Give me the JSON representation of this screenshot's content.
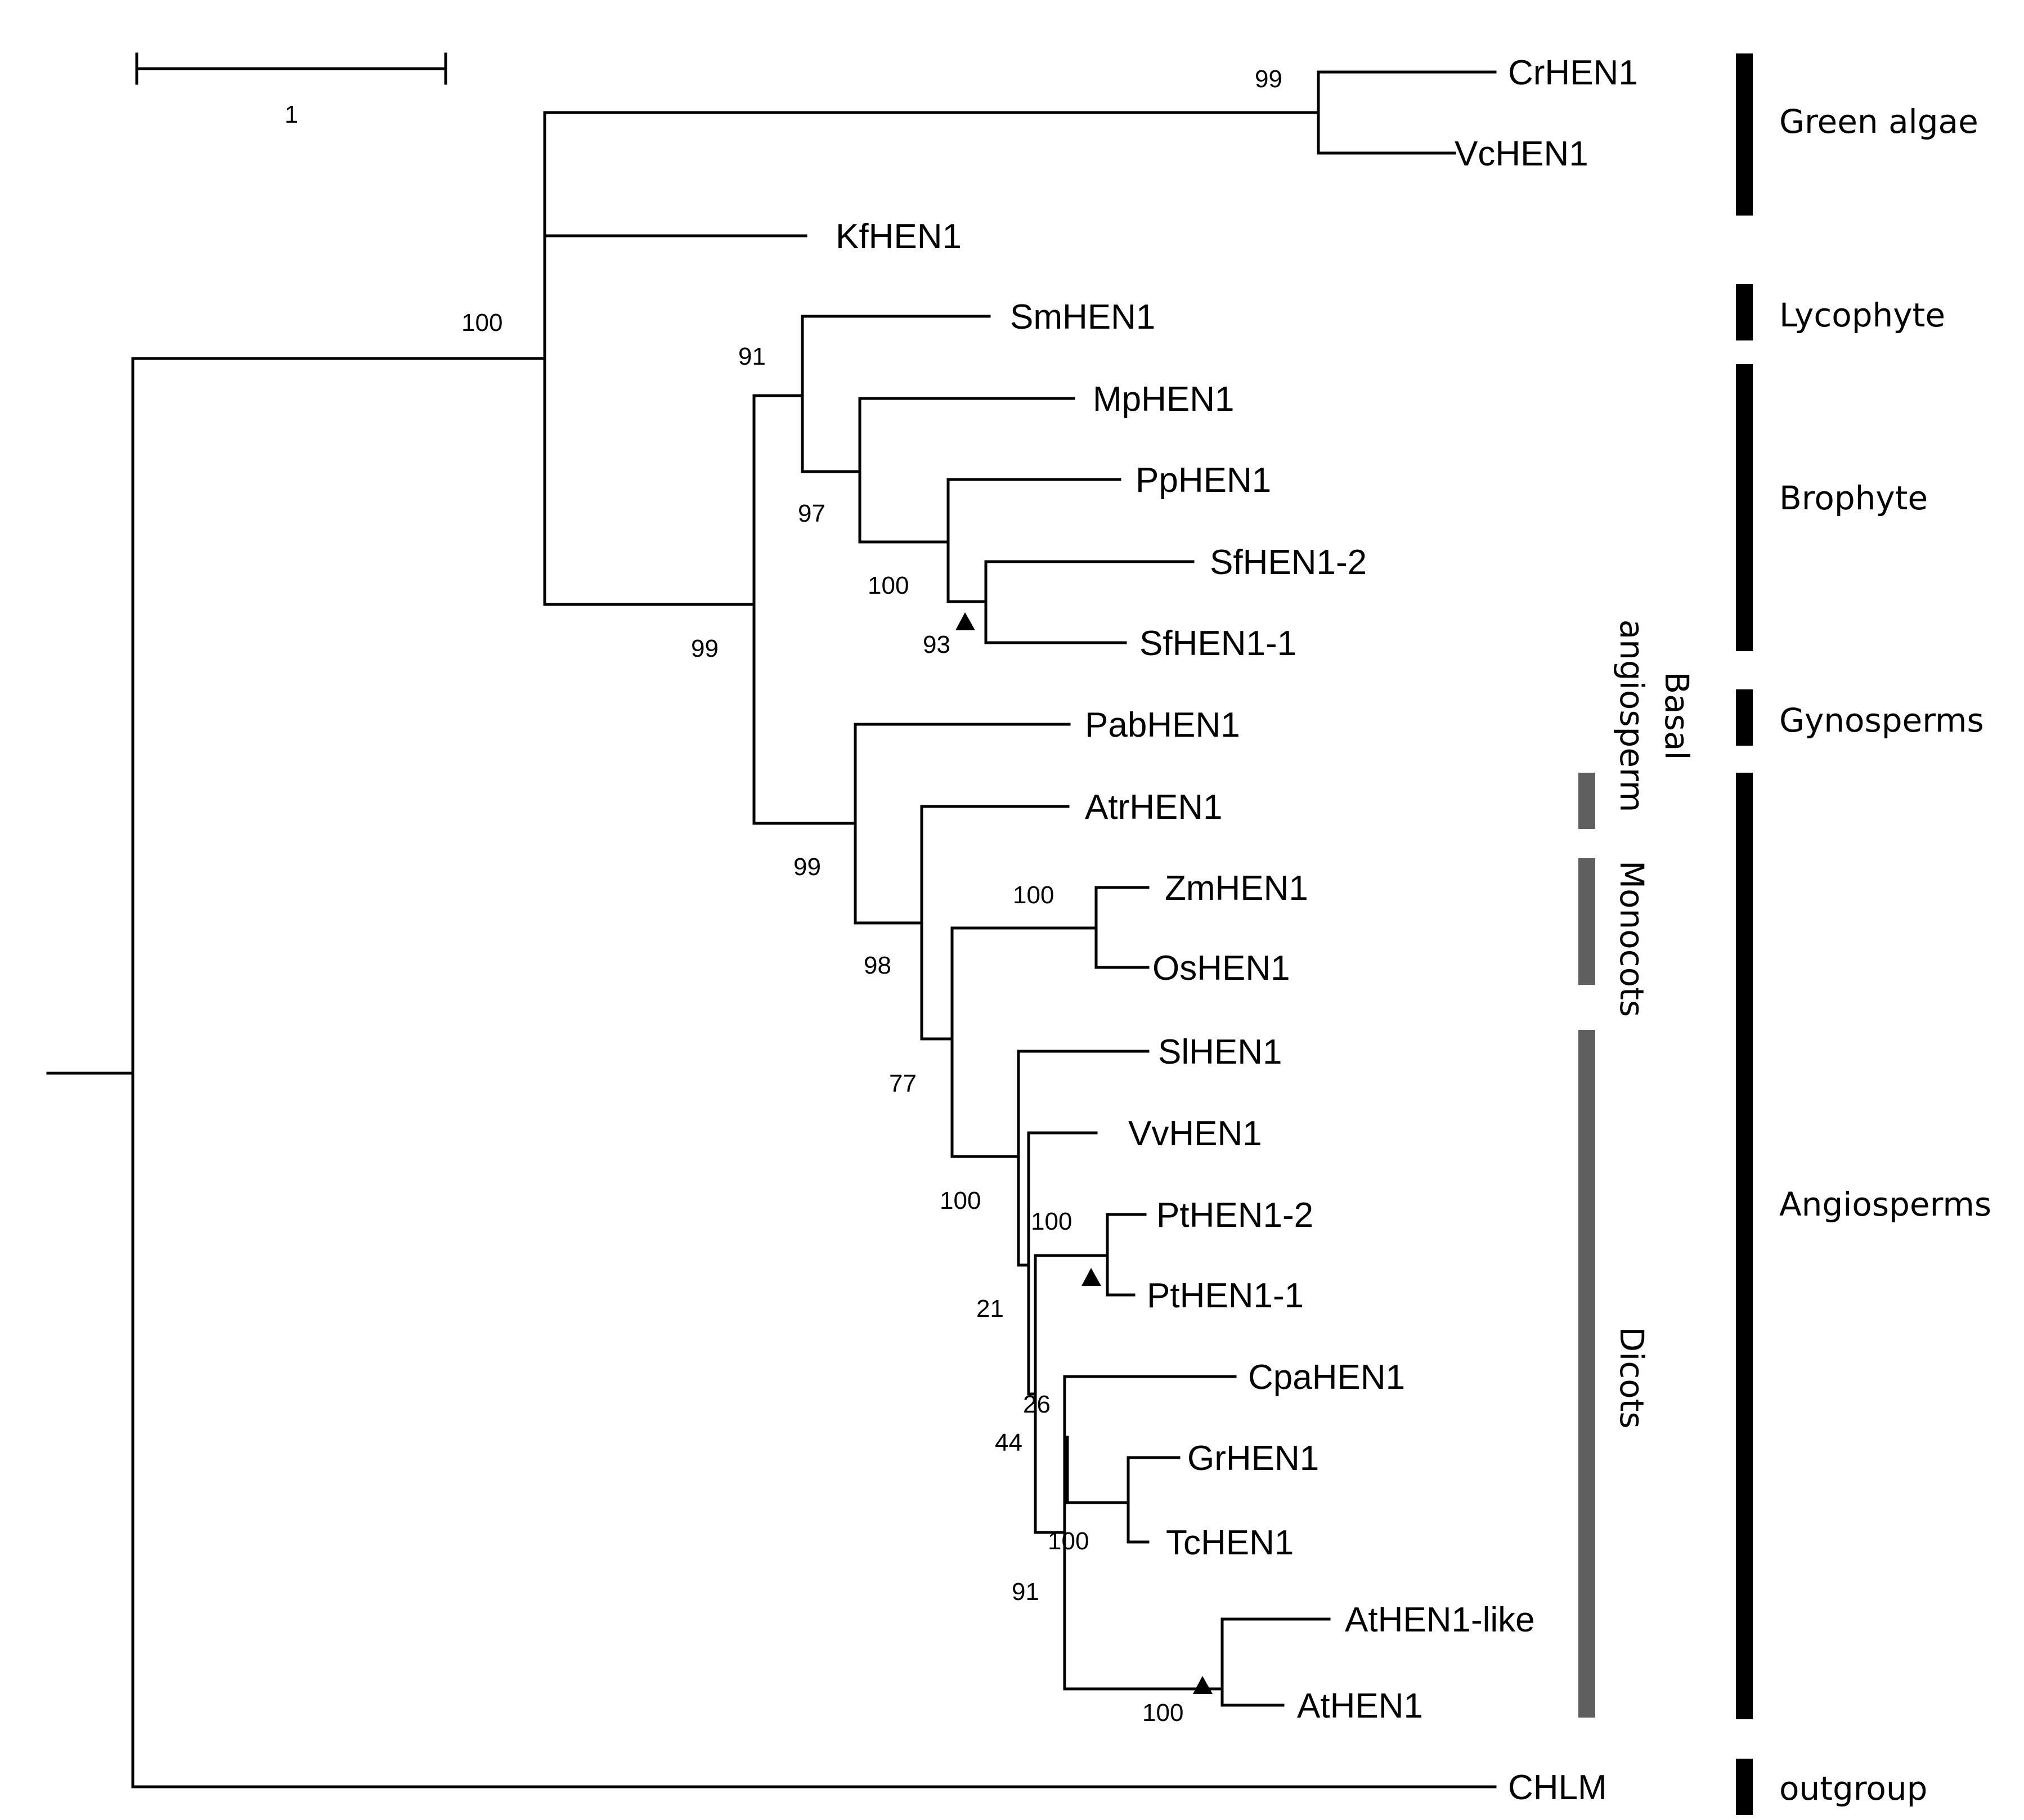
{
  "scale_bar": {
    "label": "1"
  },
  "taxa": [
    "CrHEN1",
    "VcHEN1",
    "KfHEN1",
    "SmHEN1",
    "MpHEN1",
    "PpHEN1",
    "SfHEN1-2",
    "SfHEN1-1",
    "PabHEN1",
    "AtrHEN1",
    "ZmHEN1",
    "OsHEN1",
    "SlHEN1",
    "VvHEN1",
    "PtHEN1-2",
    "PtHEN1-1",
    "CpaHEN1",
    "GrHEN1",
    "TcHEN1",
    "AtHEN1-like",
    "AtHEN1",
    "CHLM"
  ],
  "bootstrap": {
    "green_algae": "99",
    "land_plus_kf": "100",
    "lyco_bryo": "91",
    "bryophytes": "97",
    "pp_sf": "100",
    "sf": "93",
    "land_plants": "99",
    "seed_plants": "99",
    "angiosperms": "98",
    "zm_os": "100",
    "mono_dicot": "77",
    "dicots": "100",
    "pt": "100",
    "rosid_a": "21",
    "rosid_b": "26",
    "rosid_c": "44",
    "gr_tc": "100",
    "malvid": "91",
    "at": "100"
  },
  "subgroups": {
    "basal_line1": "Basal",
    "basal_line2": "angiosperm",
    "monocots": "Monocots",
    "dicots": "Dicots"
  },
  "groups": {
    "green_algae": "Green algae",
    "lycophyte": "Lycophyte",
    "brophyte": "Brophyte",
    "gynosperms": "Gynosperms",
    "angiosperms": "Angiosperms",
    "outgroup": "outgroup"
  },
  "colors": {
    "branch": "#000000",
    "group_bar": "#000000",
    "subgroup_bar": "#5f5f5f"
  }
}
